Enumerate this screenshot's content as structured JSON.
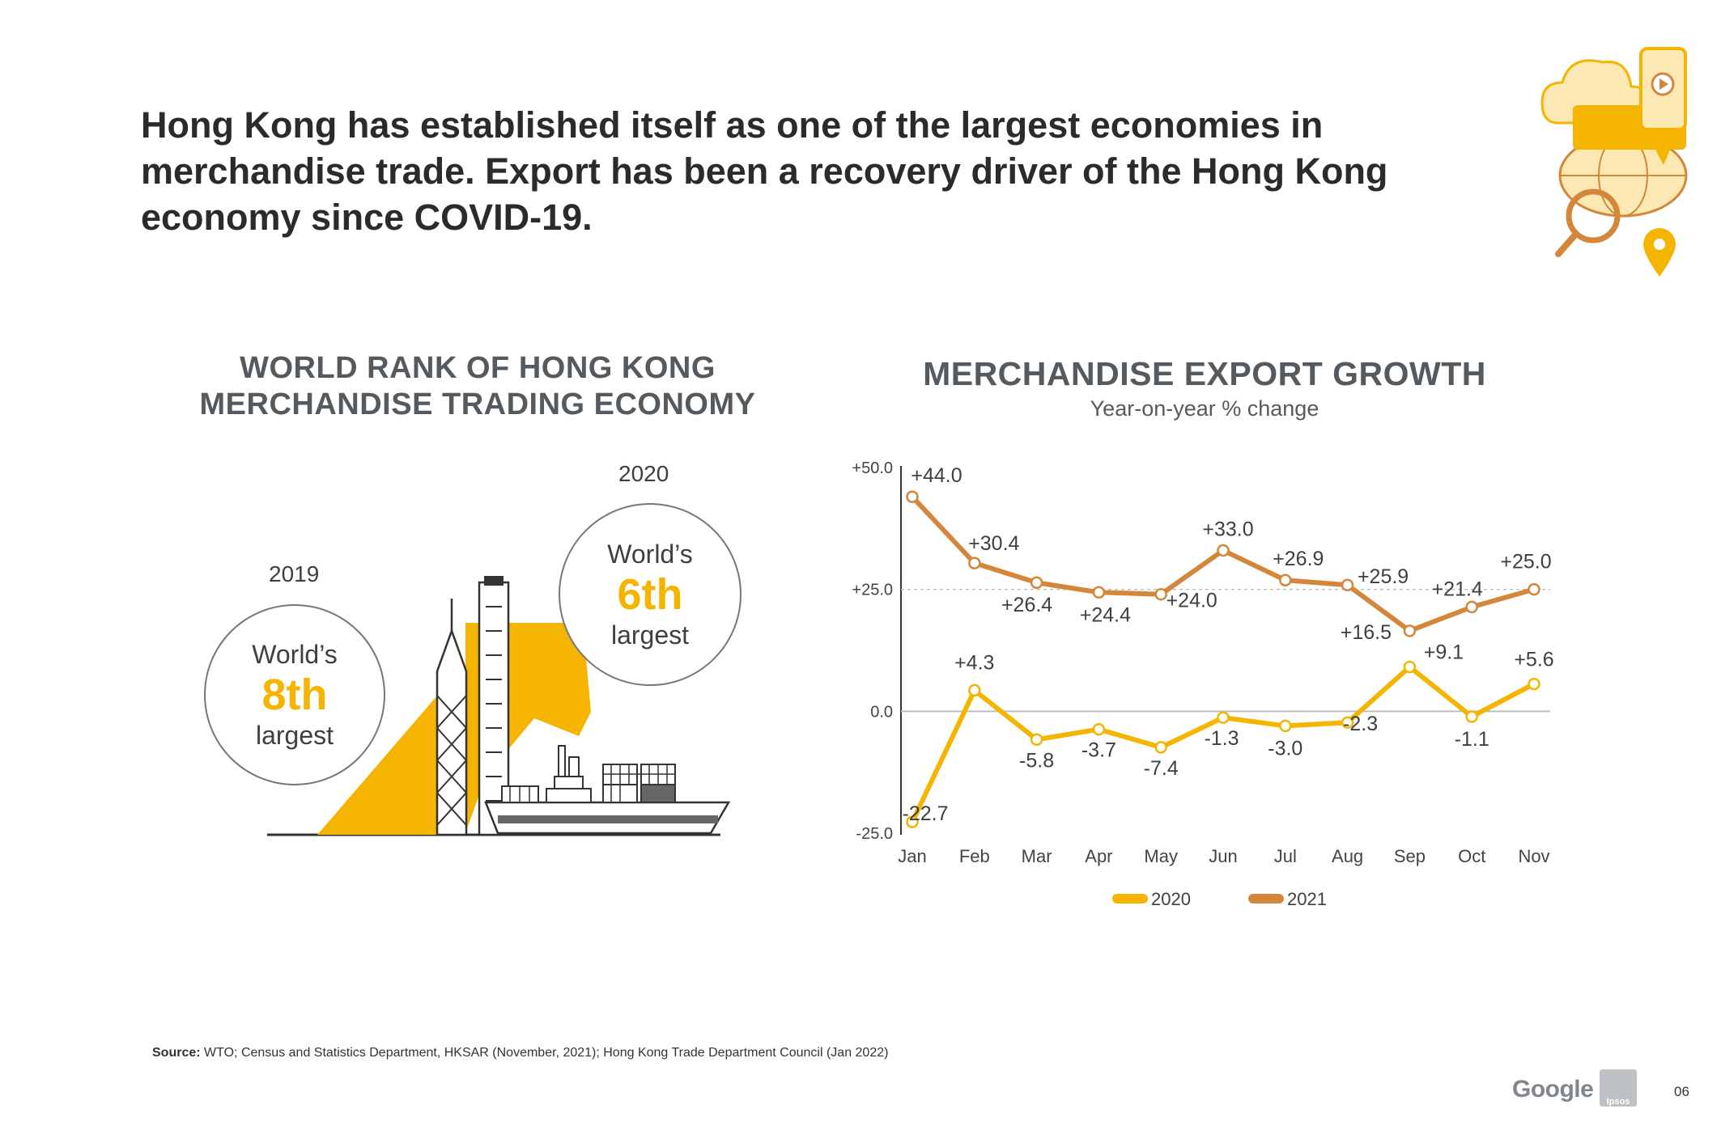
{
  "headline": "Hong Kong has established itself as one of the largest economies in merchandise trade. Export has been a recovery driver of the Hong Kong economy since COVID-19.",
  "rank": {
    "title_line1": "WORLD RANK OF HONG KONG",
    "title_line2": "MERCHANDISE TRADING ECONOMY",
    "y2019": {
      "year": "2019",
      "word": "World’s",
      "rank": "8th",
      "desc": "largest"
    },
    "y2020": {
      "year": "2020",
      "word": "World’s",
      "rank": "6th",
      "desc": "largest"
    }
  },
  "chart_data": {
    "type": "line",
    "title": "MERCHANDISE EXPORT GROWTH",
    "subtitle": "Year-on-year % change",
    "categories": [
      "Jan",
      "Feb",
      "Mar",
      "Apr",
      "May",
      "Jun",
      "Jul",
      "Aug",
      "Sep",
      "Oct",
      "Nov"
    ],
    "y_ticks": [
      "+50.0",
      "+25.0",
      "0.0",
      "-25.0"
    ],
    "ylim": [
      -25,
      50
    ],
    "series": [
      {
        "name": "2020",
        "color": "#f4b400",
        "values": [
          -22.7,
          4.3,
          -5.8,
          -3.7,
          -7.4,
          -1.3,
          -3.0,
          -2.3,
          9.1,
          -1.1,
          5.6
        ],
        "labels": [
          "-22.7",
          "+4.3",
          "-5.8",
          "-3.7",
          "-7.4",
          "-1.3",
          "-3.0",
          "-2.3",
          "+9.1",
          "-1.1",
          "+5.6"
        ]
      },
      {
        "name": "2021",
        "color": "#d4863a",
        "values": [
          44.0,
          30.4,
          26.4,
          24.4,
          24.0,
          33.0,
          26.9,
          25.9,
          16.5,
          21.4,
          25.0
        ],
        "labels": [
          "+44.0",
          "+30.4",
          "+26.4",
          "+24.4",
          "+24.0",
          "+33.0",
          "+26.9",
          "+25.9",
          "+16.5",
          "+21.4",
          "+25.0"
        ]
      }
    ],
    "legend_position": "bottom-center"
  },
  "source": {
    "label": "Source:",
    "text": " WTO; Census and Statistics Department, HKSAR (November, 2021); Hong Kong Trade Department Council (Jan 2022)"
  },
  "footer": {
    "google": "Google",
    "ipsos": "Ipsos",
    "page": "06"
  },
  "colors": {
    "accent": "#f4b400",
    "accent_2021": "#d4863a",
    "text": "#555a5e"
  }
}
